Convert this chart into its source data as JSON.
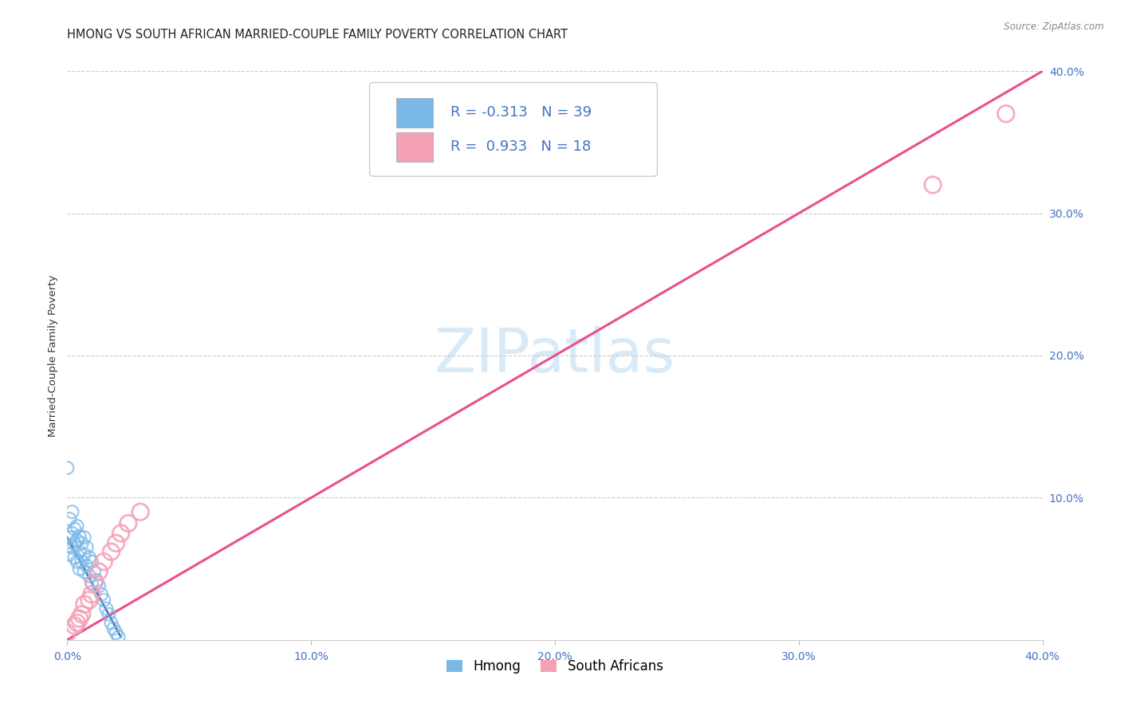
{
  "title": "HMONG VS SOUTH AFRICAN MARRIED-COUPLE FAMILY POVERTY CORRELATION CHART",
  "source": "Source: ZipAtlas.com",
  "ylabel": "Married-Couple Family Poverty",
  "xlim": [
    0.0,
    0.4
  ],
  "ylim": [
    0.0,
    0.4
  ],
  "xtick_labels": [
    "0.0%",
    "10.0%",
    "20.0%",
    "30.0%",
    "40.0%"
  ],
  "xtick_vals": [
    0.0,
    0.1,
    0.2,
    0.3,
    0.4
  ],
  "ytick_labels_right": [
    "10.0%",
    "20.0%",
    "30.0%",
    "40.0%"
  ],
  "ytick_vals_right": [
    0.1,
    0.2,
    0.3,
    0.4
  ],
  "legend_label1": "Hmong",
  "legend_label2": "South Africans",
  "hmong_R": "-0.313",
  "hmong_N": "39",
  "sa_R": "0.933",
  "sa_N": "18",
  "hmong_color": "#7ab8e8",
  "sa_color": "#f4a0b5",
  "hmong_line_color": "#3a6aaa",
  "sa_line_color": "#e85090",
  "watermark_color": "#d8eaf8",
  "background_color": "#ffffff",
  "grid_color": "#cccccc",
  "axis_label_color": "#4472C4",
  "hmong_points_x": [
    0.0,
    0.0,
    0.001,
    0.001,
    0.001,
    0.002,
    0.002,
    0.002,
    0.003,
    0.003,
    0.003,
    0.004,
    0.004,
    0.004,
    0.005,
    0.005,
    0.005,
    0.006,
    0.006,
    0.007,
    0.007,
    0.007,
    0.008,
    0.008,
    0.009,
    0.009,
    0.01,
    0.01,
    0.011,
    0.012,
    0.013,
    0.014,
    0.015,
    0.016,
    0.017,
    0.018,
    0.019,
    0.02,
    0.021
  ],
  "hmong_points_y": [
    0.121,
    0.066,
    0.085,
    0.072,
    0.06,
    0.09,
    0.075,
    0.065,
    0.078,
    0.068,
    0.058,
    0.08,
    0.07,
    0.055,
    0.073,
    0.062,
    0.05,
    0.068,
    0.055,
    0.072,
    0.06,
    0.048,
    0.065,
    0.052,
    0.058,
    0.045,
    0.055,
    0.04,
    0.048,
    0.042,
    0.038,
    0.032,
    0.028,
    0.022,
    0.018,
    0.012,
    0.008,
    0.005,
    0.002
  ],
  "sa_points_x": [
    0.0,
    0.003,
    0.004,
    0.005,
    0.006,
    0.007,
    0.009,
    0.01,
    0.011,
    0.013,
    0.015,
    0.018,
    0.02,
    0.022,
    0.025,
    0.03,
    0.355,
    0.385
  ],
  "sa_points_y": [
    0.005,
    0.01,
    0.012,
    0.015,
    0.018,
    0.025,
    0.028,
    0.032,
    0.04,
    0.048,
    0.055,
    0.062,
    0.068,
    0.075,
    0.082,
    0.09,
    0.32,
    0.37
  ],
  "hmong_line_x": [
    0.0,
    0.022
  ],
  "hmong_line_y": [
    0.072,
    0.002
  ],
  "sa_line_x": [
    0.0,
    0.4
  ],
  "sa_line_y": [
    0.0,
    0.4
  ],
  "title_fontsize": 10.5,
  "axis_label_fontsize": 9.5,
  "tick_fontsize": 10,
  "watermark_fontsize": 55
}
